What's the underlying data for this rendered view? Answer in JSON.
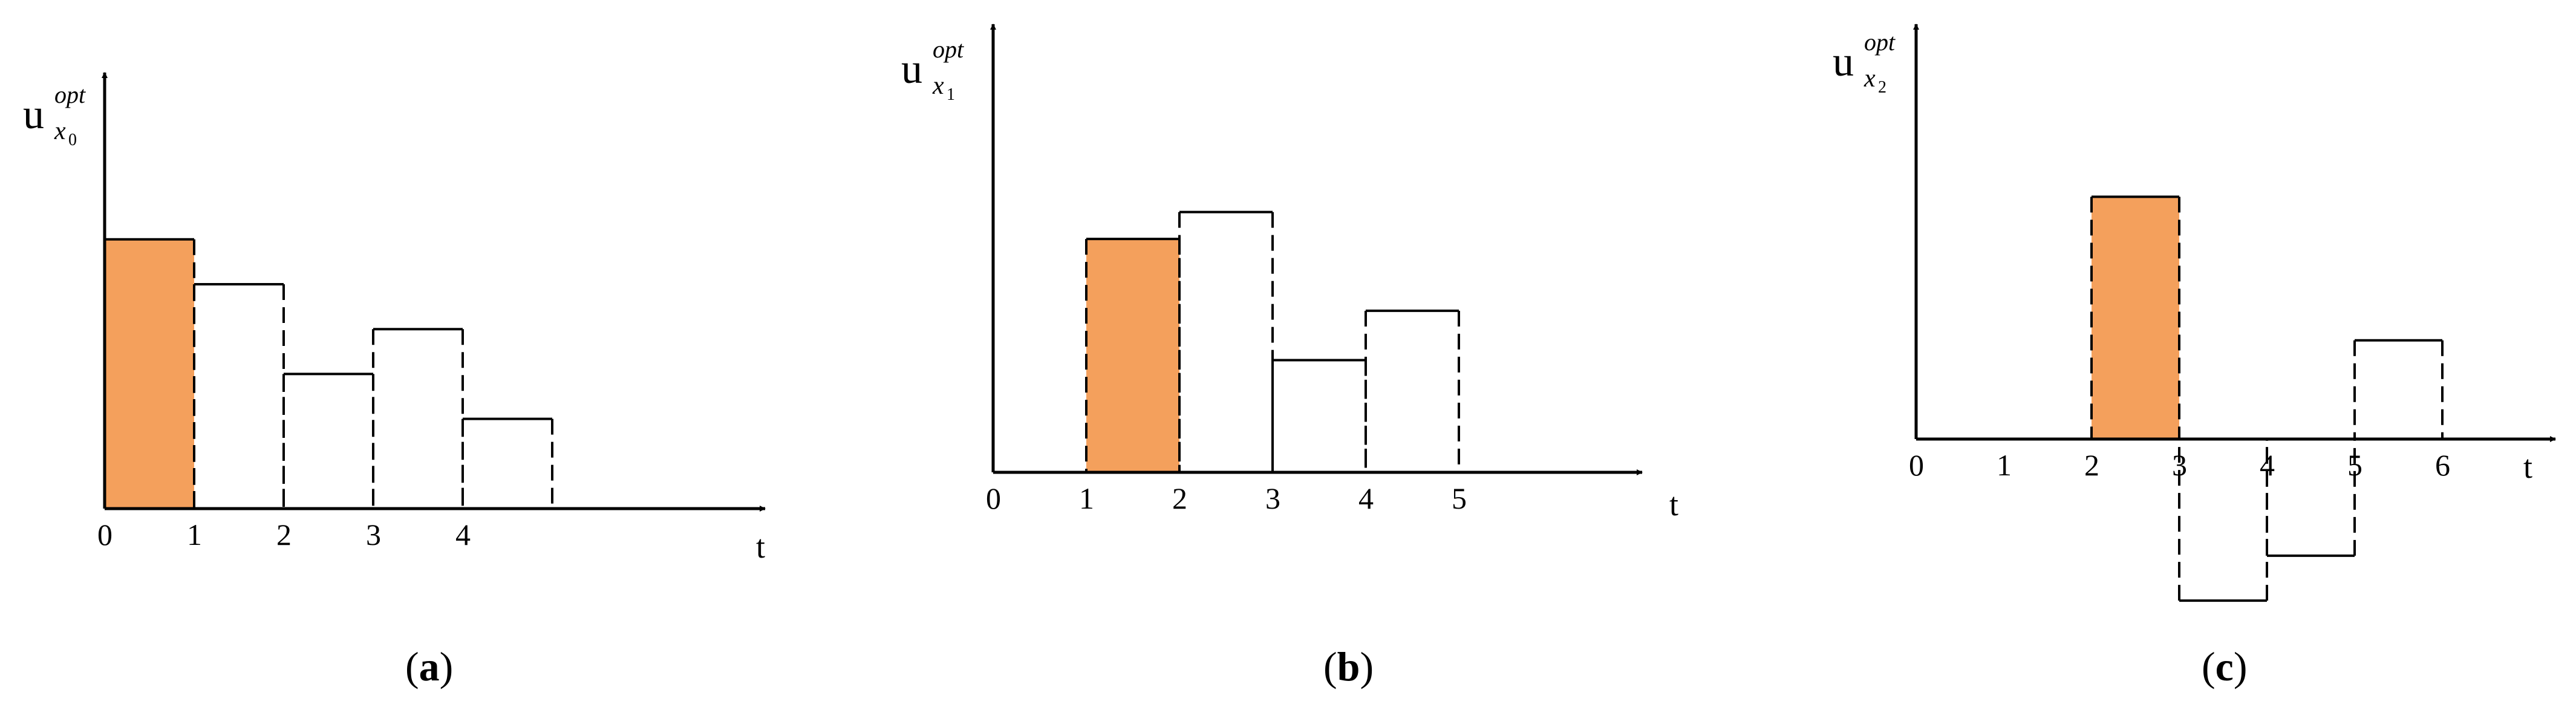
{
  "chart_data": [
    {
      "type": "step",
      "panel_label": "a",
      "ylabel": {
        "base": "u",
        "sup": "opt",
        "sub": "x",
        "subsub": "0"
      },
      "xlabel": "t",
      "x_ticks": [
        "0",
        "1",
        "2",
        "3",
        "4"
      ],
      "segments": [
        {
          "x0": 0,
          "x1": 1,
          "y": 0.6,
          "highlighted": true
        },
        {
          "x0": 1,
          "x1": 2,
          "y": 0.5,
          "highlighted": false
        },
        {
          "x0": 2,
          "x1": 3,
          "y": 0.3,
          "highlighted": false
        },
        {
          "x0": 3,
          "x1": 4,
          "y": 0.4,
          "highlighted": false
        },
        {
          "x0": 4,
          "x1": 5,
          "y": 0.2,
          "highlighted": false
        }
      ]
    },
    {
      "type": "step",
      "panel_label": "b",
      "ylabel": {
        "base": "u",
        "sup": "opt",
        "sub": "x",
        "subsub": "1"
      },
      "xlabel": "t",
      "x_ticks": [
        "0",
        "1",
        "2",
        "3",
        "4",
        "5"
      ],
      "segments": [
        {
          "x0": 1,
          "x1": 2,
          "y": 0.52,
          "highlighted": true
        },
        {
          "x0": 2,
          "x1": 3,
          "y": 0.58,
          "highlighted": false
        },
        {
          "x0": 3,
          "x1": 4,
          "y": 0.25,
          "highlighted": false
        },
        {
          "x0": 4,
          "x1": 5,
          "y": 0.36,
          "highlighted": false
        }
      ]
    },
    {
      "type": "step",
      "panel_label": "c",
      "ylabel": {
        "base": "u",
        "sup": "opt",
        "sub": "x",
        "subsub": "2"
      },
      "xlabel": "t",
      "x_ticks": [
        "0",
        "1",
        "2",
        "3",
        "4",
        "5",
        "6"
      ],
      "segments": [
        {
          "x0": 2,
          "x1": 3,
          "y": 0.54,
          "highlighted": true
        },
        {
          "x0": 3,
          "x1": 4,
          "y": -0.36,
          "highlighted": false
        },
        {
          "x0": 4,
          "x1": 5,
          "y": -0.26,
          "highlighted": false
        },
        {
          "x0": 5,
          "x1": 6,
          "y": 0.22,
          "highlighted": false
        }
      ]
    }
  ],
  "colors": {
    "highlight": "#F4A05C",
    "line": "#000000"
  }
}
